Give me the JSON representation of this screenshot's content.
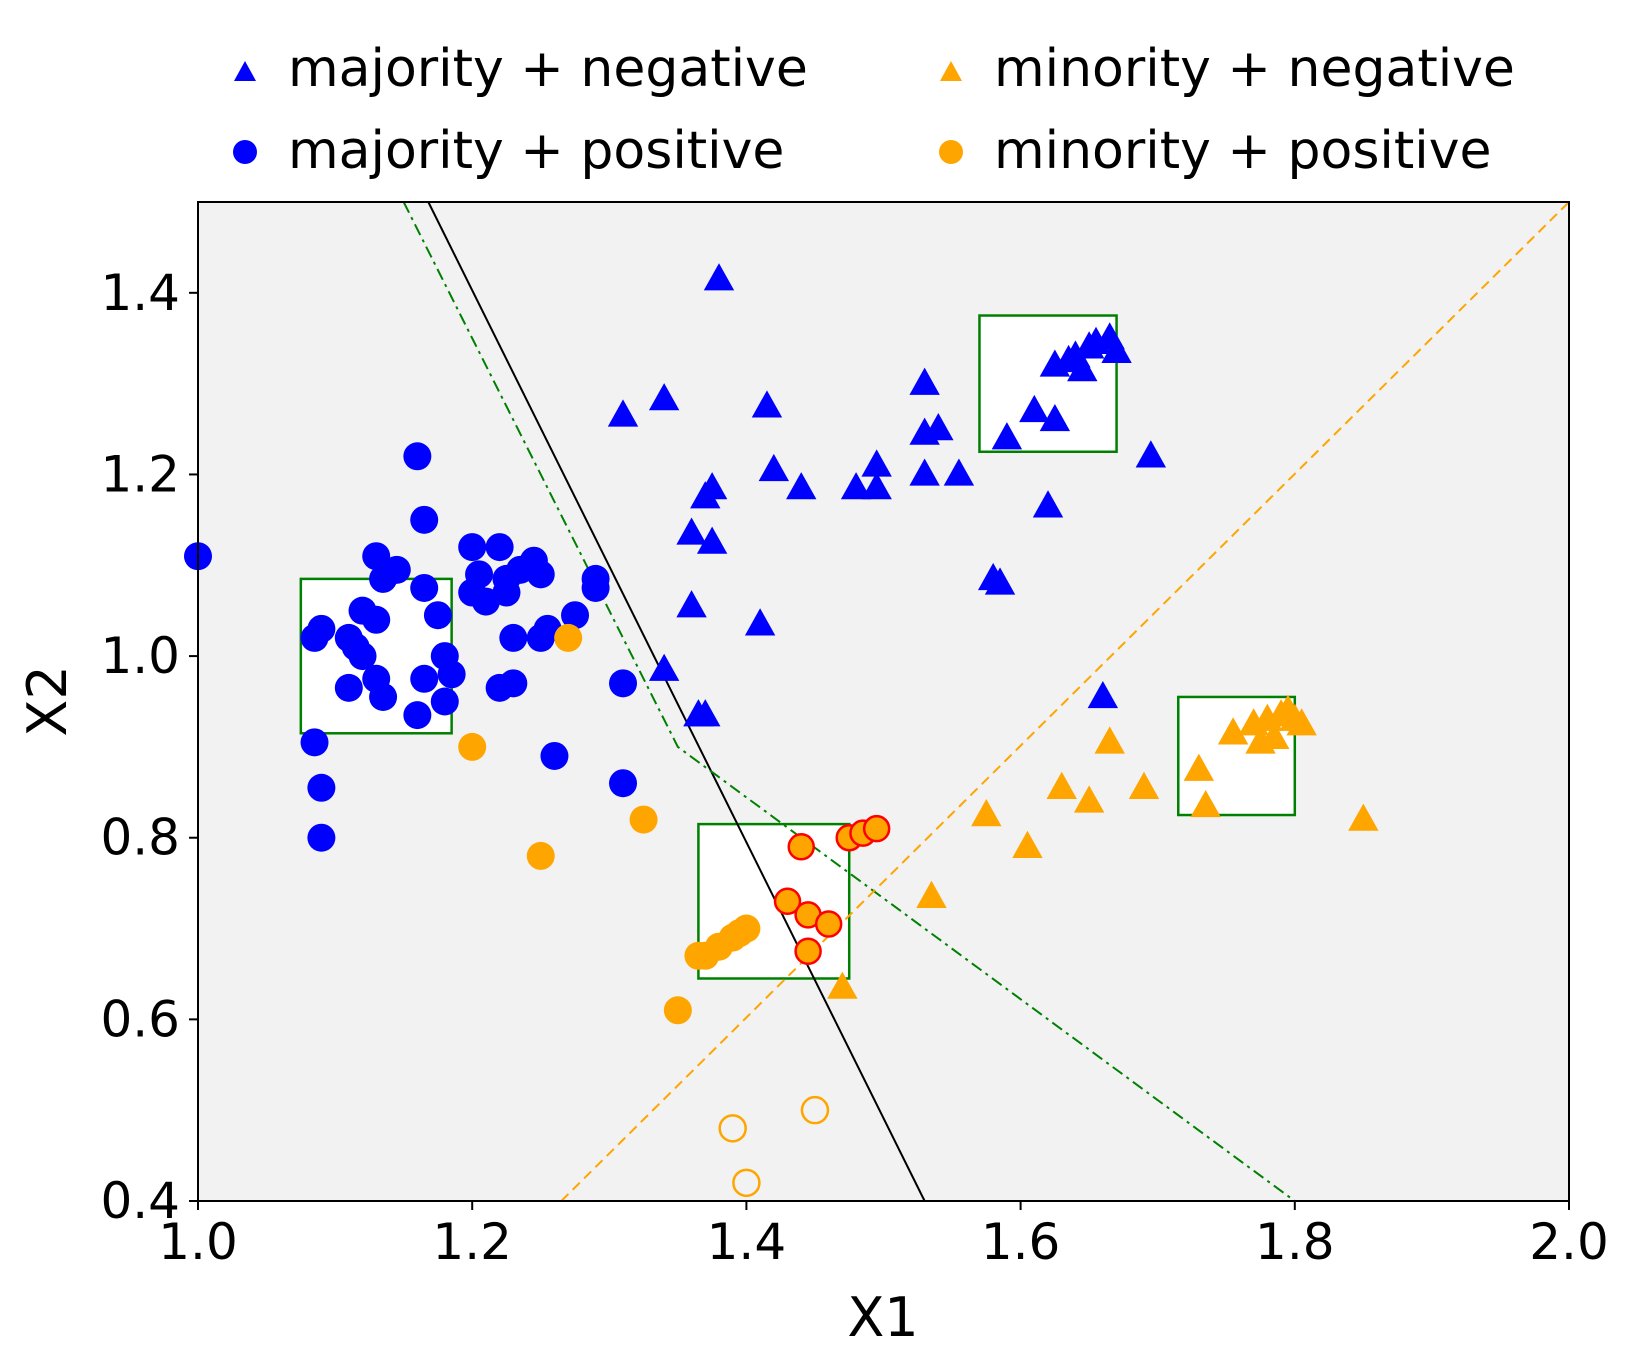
{
  "chart_data": {
    "type": "scatter",
    "xlabel": "X1",
    "ylabel": "X2",
    "xlim": [
      1.0,
      2.0
    ],
    "ylim": [
      0.4,
      1.5
    ],
    "xticks": [
      "1.0",
      "1.2",
      "1.4",
      "1.6",
      "1.8",
      "2.0"
    ],
    "yticks": [
      "0.4",
      "0.6",
      "0.8",
      "1.0",
      "1.2",
      "1.4"
    ],
    "grid": false,
    "legend_position": "top (above plot, 2 columns)",
    "colors": {
      "majority": "#0000ff",
      "minority": "#ffa500",
      "highlight_edge": "#ff0000",
      "box": "#008000",
      "plot_bg": "#f2f2f2"
    },
    "legend": [
      {
        "label": "majority + negative",
        "marker": "triangle",
        "color": "#0000ff"
      },
      {
        "label": "majority + positive",
        "marker": "circle",
        "color": "#0000ff"
      },
      {
        "label": "minority + negative",
        "marker": "triangle",
        "color": "#ffa500"
      },
      {
        "label": "minority + positive",
        "marker": "circle",
        "color": "#ffa500"
      }
    ],
    "series": [
      {
        "name": "majority + negative",
        "marker": "triangle",
        "color": "#0000ff",
        "points": [
          [
            1.38,
            1.415
          ],
          [
            1.31,
            1.265
          ],
          [
            1.34,
            1.283
          ],
          [
            1.415,
            1.275
          ],
          [
            1.42,
            1.205
          ],
          [
            1.44,
            1.185
          ],
          [
            1.37,
            1.175
          ],
          [
            1.375,
            1.185
          ],
          [
            1.36,
            1.135
          ],
          [
            1.375,
            1.125
          ],
          [
            1.36,
            1.055
          ],
          [
            1.41,
            1.035
          ],
          [
            1.34,
            0.985
          ],
          [
            1.365,
            0.935
          ],
          [
            1.37,
            0.935
          ],
          [
            1.48,
            1.185
          ],
          [
            1.495,
            1.185
          ],
          [
            1.495,
            1.21
          ],
          [
            1.53,
            1.3
          ],
          [
            1.53,
            1.245
          ],
          [
            1.54,
            1.25
          ],
          [
            1.53,
            1.2
          ],
          [
            1.555,
            1.2
          ],
          [
            1.59,
            1.24
          ],
          [
            1.61,
            1.27
          ],
          [
            1.625,
            1.26
          ],
          [
            1.625,
            1.32
          ],
          [
            1.64,
            1.33
          ],
          [
            1.65,
            1.34
          ],
          [
            1.655,
            1.345
          ],
          [
            1.665,
            1.35
          ],
          [
            1.67,
            1.335
          ],
          [
            1.645,
            1.315
          ],
          [
            1.635,
            1.325
          ],
          [
            1.695,
            1.22
          ],
          [
            1.62,
            1.165
          ],
          [
            1.58,
            1.085
          ],
          [
            1.585,
            1.08
          ],
          [
            1.66,
            0.955
          ]
        ]
      },
      {
        "name": "majority + positive",
        "marker": "circle",
        "color": "#0000ff",
        "points": [
          [
            1.0,
            1.11
          ],
          [
            1.16,
            1.22
          ],
          [
            1.165,
            1.15
          ],
          [
            1.13,
            1.11
          ],
          [
            1.145,
            1.095
          ],
          [
            1.135,
            1.085
          ],
          [
            1.165,
            1.075
          ],
          [
            1.175,
            1.045
          ],
          [
            1.12,
            1.05
          ],
          [
            1.13,
            1.04
          ],
          [
            1.09,
            1.03
          ],
          [
            1.085,
            1.02
          ],
          [
            1.11,
            1.02
          ],
          [
            1.115,
            1.01
          ],
          [
            1.12,
            1.0
          ],
          [
            1.18,
            1.0
          ],
          [
            1.13,
            0.975
          ],
          [
            1.165,
            0.975
          ],
          [
            1.185,
            0.98
          ],
          [
            1.11,
            0.965
          ],
          [
            1.135,
            0.955
          ],
          [
            1.16,
            0.935
          ],
          [
            1.18,
            0.95
          ],
          [
            1.085,
            0.905
          ],
          [
            1.09,
            0.855
          ],
          [
            1.09,
            0.8
          ],
          [
            1.2,
            1.12
          ],
          [
            1.22,
            1.12
          ],
          [
            1.245,
            1.105
          ],
          [
            1.235,
            1.095
          ],
          [
            1.205,
            1.09
          ],
          [
            1.225,
            1.085
          ],
          [
            1.25,
            1.09
          ],
          [
            1.2,
            1.07
          ],
          [
            1.225,
            1.07
          ],
          [
            1.21,
            1.06
          ],
          [
            1.23,
            1.02
          ],
          [
            1.25,
            1.02
          ],
          [
            1.255,
            1.03
          ],
          [
            1.275,
            1.045
          ],
          [
            1.29,
            1.085
          ],
          [
            1.29,
            1.075
          ],
          [
            1.22,
            0.965
          ],
          [
            1.23,
            0.97
          ],
          [
            1.26,
            0.89
          ],
          [
            1.31,
            0.97
          ],
          [
            1.31,
            0.86
          ]
        ]
      },
      {
        "name": "minority + negative",
        "marker": "triangle",
        "color": "#ffa500",
        "points": [
          [
            1.47,
            0.635
          ],
          [
            1.535,
            0.735
          ],
          [
            1.575,
            0.825
          ],
          [
            1.605,
            0.79
          ],
          [
            1.63,
            0.855
          ],
          [
            1.65,
            0.84
          ],
          [
            1.665,
            0.905
          ],
          [
            1.69,
            0.855
          ],
          [
            1.73,
            0.875
          ],
          [
            1.735,
            0.835
          ],
          [
            1.755,
            0.915
          ],
          [
            1.77,
            0.925
          ],
          [
            1.775,
            0.905
          ],
          [
            1.78,
            0.93
          ],
          [
            1.785,
            0.91
          ],
          [
            1.79,
            0.935
          ],
          [
            1.8,
            0.93
          ],
          [
            1.795,
            0.94
          ],
          [
            1.805,
            0.925
          ],
          [
            1.85,
            0.82
          ]
        ]
      },
      {
        "name": "minority + positive",
        "marker": "circle",
        "color": "#ffa500",
        "points": [
          [
            1.27,
            1.02
          ],
          [
            1.2,
            0.9
          ],
          [
            1.25,
            0.78
          ],
          [
            1.325,
            0.82
          ],
          [
            1.35,
            0.61
          ],
          [
            1.365,
            0.67
          ],
          [
            1.37,
            0.67
          ],
          [
            1.38,
            0.68
          ],
          [
            1.39,
            0.69
          ],
          [
            1.395,
            0.695
          ],
          [
            1.4,
            0.7
          ]
        ]
      },
      {
        "name": "minority + positive (highlighted)",
        "marker": "circle",
        "color": "#ffa500",
        "edge": "#ff0000",
        "points": [
          [
            1.44,
            0.79
          ],
          [
            1.475,
            0.8
          ],
          [
            1.485,
            0.805
          ],
          [
            1.495,
            0.81
          ],
          [
            1.43,
            0.73
          ],
          [
            1.445,
            0.715
          ],
          [
            1.46,
            0.705
          ],
          [
            1.445,
            0.675
          ]
        ]
      },
      {
        "name": "minority + positive (hollow)",
        "marker": "hollow-circle",
        "color": "#ffa500",
        "points": [
          [
            1.39,
            0.48
          ],
          [
            1.45,
            0.5
          ],
          [
            1.4,
            0.42
          ]
        ]
      }
    ],
    "boxes": [
      {
        "x0": 1.075,
        "x1": 1.185,
        "y0": 0.915,
        "y1": 1.085
      },
      {
        "x0": 1.365,
        "x1": 1.475,
        "y0": 0.645,
        "y1": 0.815
      },
      {
        "x0": 1.57,
        "x1": 1.67,
        "y0": 1.225,
        "y1": 1.375
      },
      {
        "x0": 1.715,
        "x1": 1.8,
        "y0": 0.825,
        "y1": 0.955
      }
    ],
    "lines": [
      {
        "name": "black-boundary",
        "style": "solid",
        "color": "#000000",
        "points": [
          [
            1.168,
            1.5
          ],
          [
            1.53,
            0.4
          ]
        ]
      },
      {
        "name": "green-boundary",
        "style": "dashdot",
        "color": "#008000",
        "points": [
          [
            1.15,
            1.5
          ],
          [
            1.35,
            0.9
          ],
          [
            1.8,
            0.4
          ]
        ]
      },
      {
        "name": "orange-boundary",
        "style": "dashed",
        "color": "#ffa500",
        "points": [
          [
            1.265,
            0.4
          ],
          [
            2.0,
            1.5
          ]
        ]
      }
    ]
  }
}
